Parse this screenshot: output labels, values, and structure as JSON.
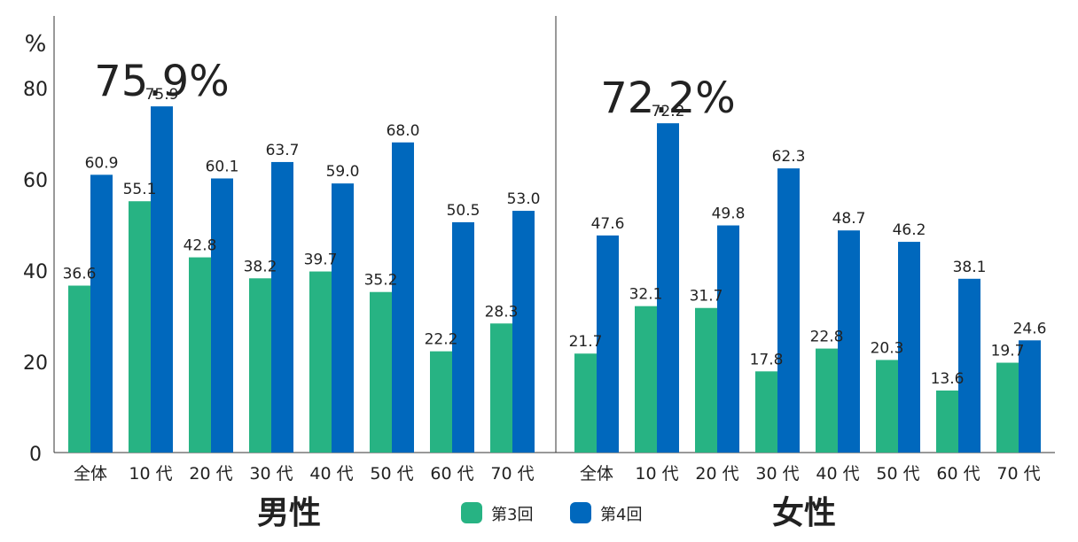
{
  "chart_data": {
    "type": "bar",
    "y_unit": "%",
    "ylim": [
      0,
      95
    ],
    "yticks": [
      0,
      20,
      40,
      60,
      80
    ],
    "legend": [
      {
        "name": "第3回",
        "color": "#27b383"
      },
      {
        "name": "第4回",
        "color": "#0068bd"
      }
    ],
    "panels": [
      {
        "title": "男性",
        "highlight": "75.9%",
        "categories": [
          "全体",
          "10 代",
          "20 代",
          "30 代",
          "40 代",
          "50 代",
          "60 代",
          "70 代"
        ],
        "series": [
          {
            "name": "第3回",
            "values": [
              36.6,
              55.1,
              42.8,
              38.2,
              39.7,
              35.2,
              22.2,
              28.3
            ]
          },
          {
            "name": "第4回",
            "values": [
              60.9,
              75.9,
              60.1,
              63.7,
              59.0,
              68.0,
              50.5,
              53.0
            ]
          }
        ]
      },
      {
        "title": "女性",
        "highlight": "72.2%",
        "categories": [
          "全体",
          "10 代",
          "20 代",
          "30 代",
          "40 代",
          "50 代",
          "60 代",
          "70 代"
        ],
        "series": [
          {
            "name": "第3回",
            "values": [
              21.7,
              32.1,
              31.7,
              17.8,
              22.8,
              20.3,
              13.6,
              19.7
            ]
          },
          {
            "name": "第4回",
            "values": [
              47.6,
              72.2,
              49.8,
              62.3,
              48.7,
              46.2,
              38.1,
              24.6
            ]
          }
        ]
      }
    ]
  }
}
